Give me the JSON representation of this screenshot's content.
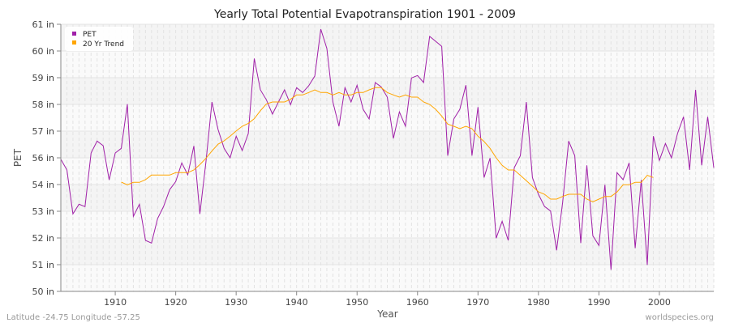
{
  "chart_data": {
    "type": "line",
    "title": "Yearly Total Potential Evapotranspiration 1901 - 2009",
    "xlabel": "Year",
    "ylabel": "PET",
    "xlim": [
      1901,
      2009
    ],
    "ylim": [
      50,
      61
    ],
    "x_ticks": [
      1910,
      1920,
      1930,
      1940,
      1950,
      1960,
      1970,
      1980,
      1990,
      2000
    ],
    "y_ticks": [
      {
        "value": 50.0,
        "label": "50 in"
      },
      {
        "value": 51.1,
        "label": "51 in"
      },
      {
        "value": 52.2,
        "label": "52 in"
      },
      {
        "value": 53.3,
        "label": "53 in"
      },
      {
        "value": 54.4,
        "label": "54 in"
      },
      {
        "value": 55.5,
        "label": "56 in"
      },
      {
        "value": 56.6,
        "label": "57 in"
      },
      {
        "value": 57.7,
        "label": "58 in"
      },
      {
        "value": 58.8,
        "label": "59 in"
      },
      {
        "value": 59.9,
        "label": "60 in"
      },
      {
        "value": 61.0,
        "label": "61 in"
      }
    ],
    "grid": true,
    "legend_position": "top-left",
    "series": [
      {
        "name": "PET",
        "color": "#a020a8",
        "x_start": 1901,
        "values": [
          55.44,
          55.0,
          53.19,
          53.59,
          53.49,
          55.7,
          56.19,
          56.0,
          54.59,
          55.7,
          55.89,
          57.71,
          53.09,
          53.59,
          52.1,
          51.99,
          53.0,
          53.5,
          54.19,
          54.52,
          55.29,
          54.8,
          55.99,
          53.19,
          55.33,
          57.8,
          56.67,
          55.89,
          55.5,
          56.39,
          55.8,
          56.5,
          59.59,
          58.3,
          57.89,
          57.3,
          57.8,
          58.3,
          57.69,
          58.39,
          58.19,
          58.47,
          58.87,
          60.8,
          60.0,
          57.8,
          56.8,
          58.39,
          57.8,
          58.49,
          57.5,
          57.1,
          58.6,
          58.42,
          58.0,
          56.3,
          57.39,
          56.8,
          58.79,
          58.89,
          58.6,
          60.5,
          60.3,
          60.09,
          55.59,
          57.1,
          57.5,
          58.49,
          55.59,
          57.59,
          54.69,
          55.49,
          52.19,
          52.89,
          52.1,
          55.09,
          55.59,
          57.8,
          54.69,
          54.0,
          53.5,
          53.31,
          51.69,
          53.67,
          56.19,
          55.59,
          51.99,
          55.19,
          52.29,
          51.89,
          54.39,
          50.89,
          54.89,
          54.6,
          55.29,
          51.78,
          54.59,
          51.09,
          56.39,
          55.39,
          56.09,
          55.5,
          56.5,
          57.19,
          55.0,
          58.3,
          55.19,
          57.19,
          55.09
        ]
      },
      {
        "name": "20 Yr Trend",
        "color": "#ffa500",
        "x_start": 1911,
        "values": [
          54.5,
          54.39,
          54.49,
          54.49,
          54.6,
          54.79,
          54.79,
          54.79,
          54.79,
          54.89,
          54.89,
          54.89,
          55.0,
          55.22,
          55.48,
          55.78,
          56.06,
          56.2,
          56.39,
          56.61,
          56.8,
          56.92,
          57.11,
          57.44,
          57.72,
          57.8,
          57.8,
          57.8,
          57.91,
          58.09,
          58.09,
          58.19,
          58.3,
          58.19,
          58.19,
          58.09,
          58.19,
          58.09,
          58.09,
          58.19,
          58.19,
          58.3,
          58.39,
          58.39,
          58.19,
          58.09,
          58.0,
          58.09,
          58.0,
          58.0,
          57.8,
          57.7,
          57.5,
          57.22,
          56.89,
          56.8,
          56.7,
          56.8,
          56.7,
          56.39,
          56.17,
          55.89,
          55.5,
          55.19,
          55.0,
          55.0,
          54.78,
          54.56,
          54.33,
          54.1,
          54.0,
          53.8,
          53.8,
          53.91,
          54.0,
          54.0,
          54.0,
          53.8,
          53.69,
          53.8,
          53.91,
          53.91,
          54.09,
          54.39,
          54.39,
          54.49,
          54.49,
          54.78,
          54.69
        ]
      }
    ]
  },
  "footer": {
    "location": "Latitude -24.75 Longitude -57.25",
    "source": "worldspecies.org"
  }
}
